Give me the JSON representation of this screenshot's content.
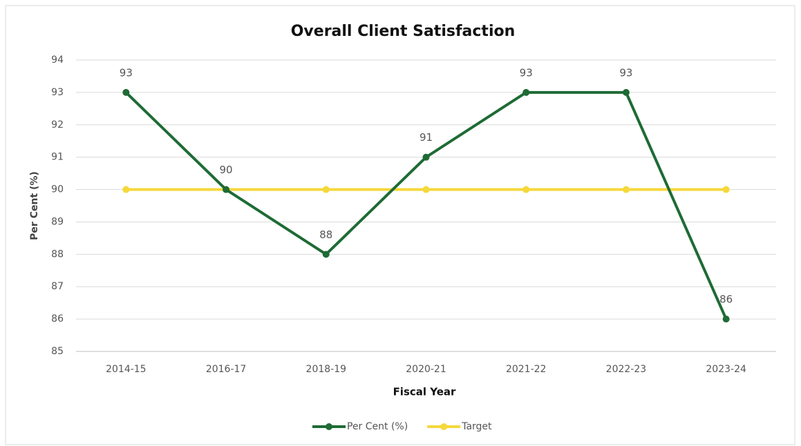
{
  "chart_data": {
    "type": "line",
    "title": "Overall Client Satisfaction",
    "x_label": "Fiscal Year",
    "y_label": "Per Cent (%)",
    "categories": [
      "2014-15",
      "2016-17",
      "2018-19",
      "2020-21",
      "2021-22",
      "2022-23",
      "2023-24"
    ],
    "series": [
      {
        "name": "Per Cent (%)",
        "color": "#1e6b35",
        "values": [
          93,
          90,
          88,
          91,
          93,
          93,
          86
        ],
        "data_labels": true
      },
      {
        "name": "Target",
        "color": "#f6d83b",
        "values": [
          90,
          90,
          90,
          90,
          90,
          90,
          90
        ]
      }
    ],
    "ylim": [
      85,
      94
    ],
    "yticks": [
      85,
      86,
      87,
      88,
      89,
      90,
      91,
      92,
      93,
      94
    ],
    "grid": true,
    "legend": "bottom"
  }
}
